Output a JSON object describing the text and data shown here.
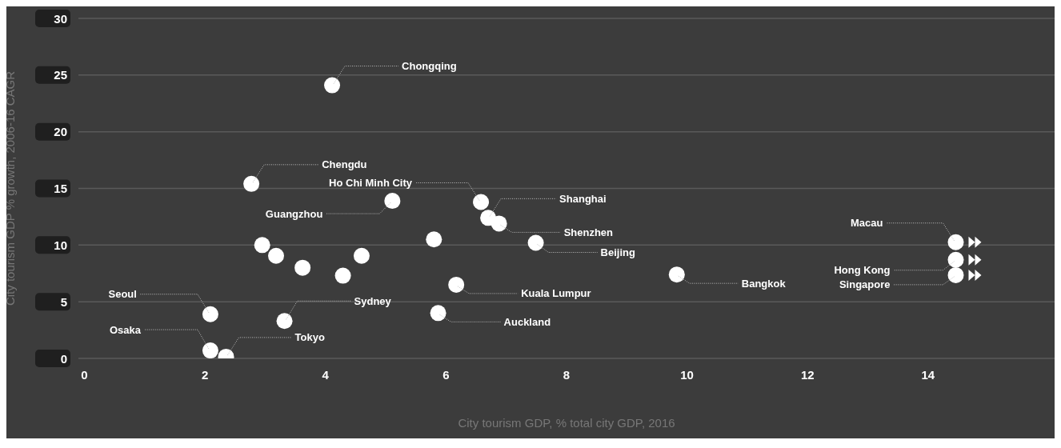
{
  "chart_data": {
    "type": "scatter",
    "xlabel": "City tourism GDP, % total city GDP, 2016",
    "ylabel": "City tourism GDP % growth, 2006-16 CAGR",
    "x": [
      4.11,
      2.77,
      5.11,
      6.58,
      6.7,
      6.88,
      7.49,
      5.8,
      2.95,
      3.18,
      3.62,
      4.29,
      4.6,
      9.83,
      6.17,
      5.87,
      3.32,
      2.09,
      2.09,
      2.35,
      14.46,
      14.46,
      14.46
    ],
    "values": [
      24.1,
      15.4,
      13.9,
      13.8,
      12.4,
      11.9,
      10.2,
      10.5,
      10.0,
      9.05,
      8.0,
      7.3,
      9.05,
      7.4,
      6.5,
      4.0,
      3.3,
      3.9,
      0.7,
      0.15,
      10.25,
      8.7,
      7.35
    ],
    "color": "#ffffff",
    "xlim": [
      -0.1,
      16.1
    ],
    "xticks": [
      0,
      2,
      4,
      6,
      8,
      10,
      12,
      14
    ],
    "ylim": [
      0,
      30
    ],
    "yticks": [
      0,
      5,
      10,
      15,
      20,
      25,
      30
    ],
    "grid": "y",
    "legend": false,
    "marker": "circle",
    "annotations": [
      {
        "text": "Chongqing",
        "x": 4.11,
        "y": 24.1
      },
      {
        "text": "Chengdu",
        "x": 2.77,
        "y": 15.4
      },
      {
        "text": "Ho Chi Minh City",
        "x": 6.58,
        "y": 13.8
      },
      {
        "text": "Guangzhou",
        "x": 5.11,
        "y": 13.9
      },
      {
        "text": "Shanghai",
        "x": 6.7,
        "y": 12.4
      },
      {
        "text": "Shenzhen",
        "x": 6.88,
        "y": 11.9
      },
      {
        "text": "Beijing",
        "x": 7.49,
        "y": 10.2
      },
      {
        "text": "Bangkok",
        "x": 9.83,
        "y": 7.4
      },
      {
        "text": "Kuala Lumpur",
        "x": 6.17,
        "y": 6.5
      },
      {
        "text": "Auckland",
        "x": 5.87,
        "y": 4.0
      },
      {
        "text": "Sydney",
        "x": 3.32,
        "y": 3.3
      },
      {
        "text": "Tokyo",
        "x": 2.35,
        "y": 0.15
      },
      {
        "text": "Seoul",
        "x": 2.09,
        "y": 3.9
      },
      {
        "text": "Osaka",
        "x": 2.09,
        "y": 0.7
      },
      {
        "text": "Macau",
        "x": 14.46,
        "y": 10.25
      },
      {
        "text": "Hong Kong",
        "x": 14.46,
        "y": 8.7
      },
      {
        "text": "Singapore",
        "x": 14.46,
        "y": 7.35
      }
    ]
  }
}
